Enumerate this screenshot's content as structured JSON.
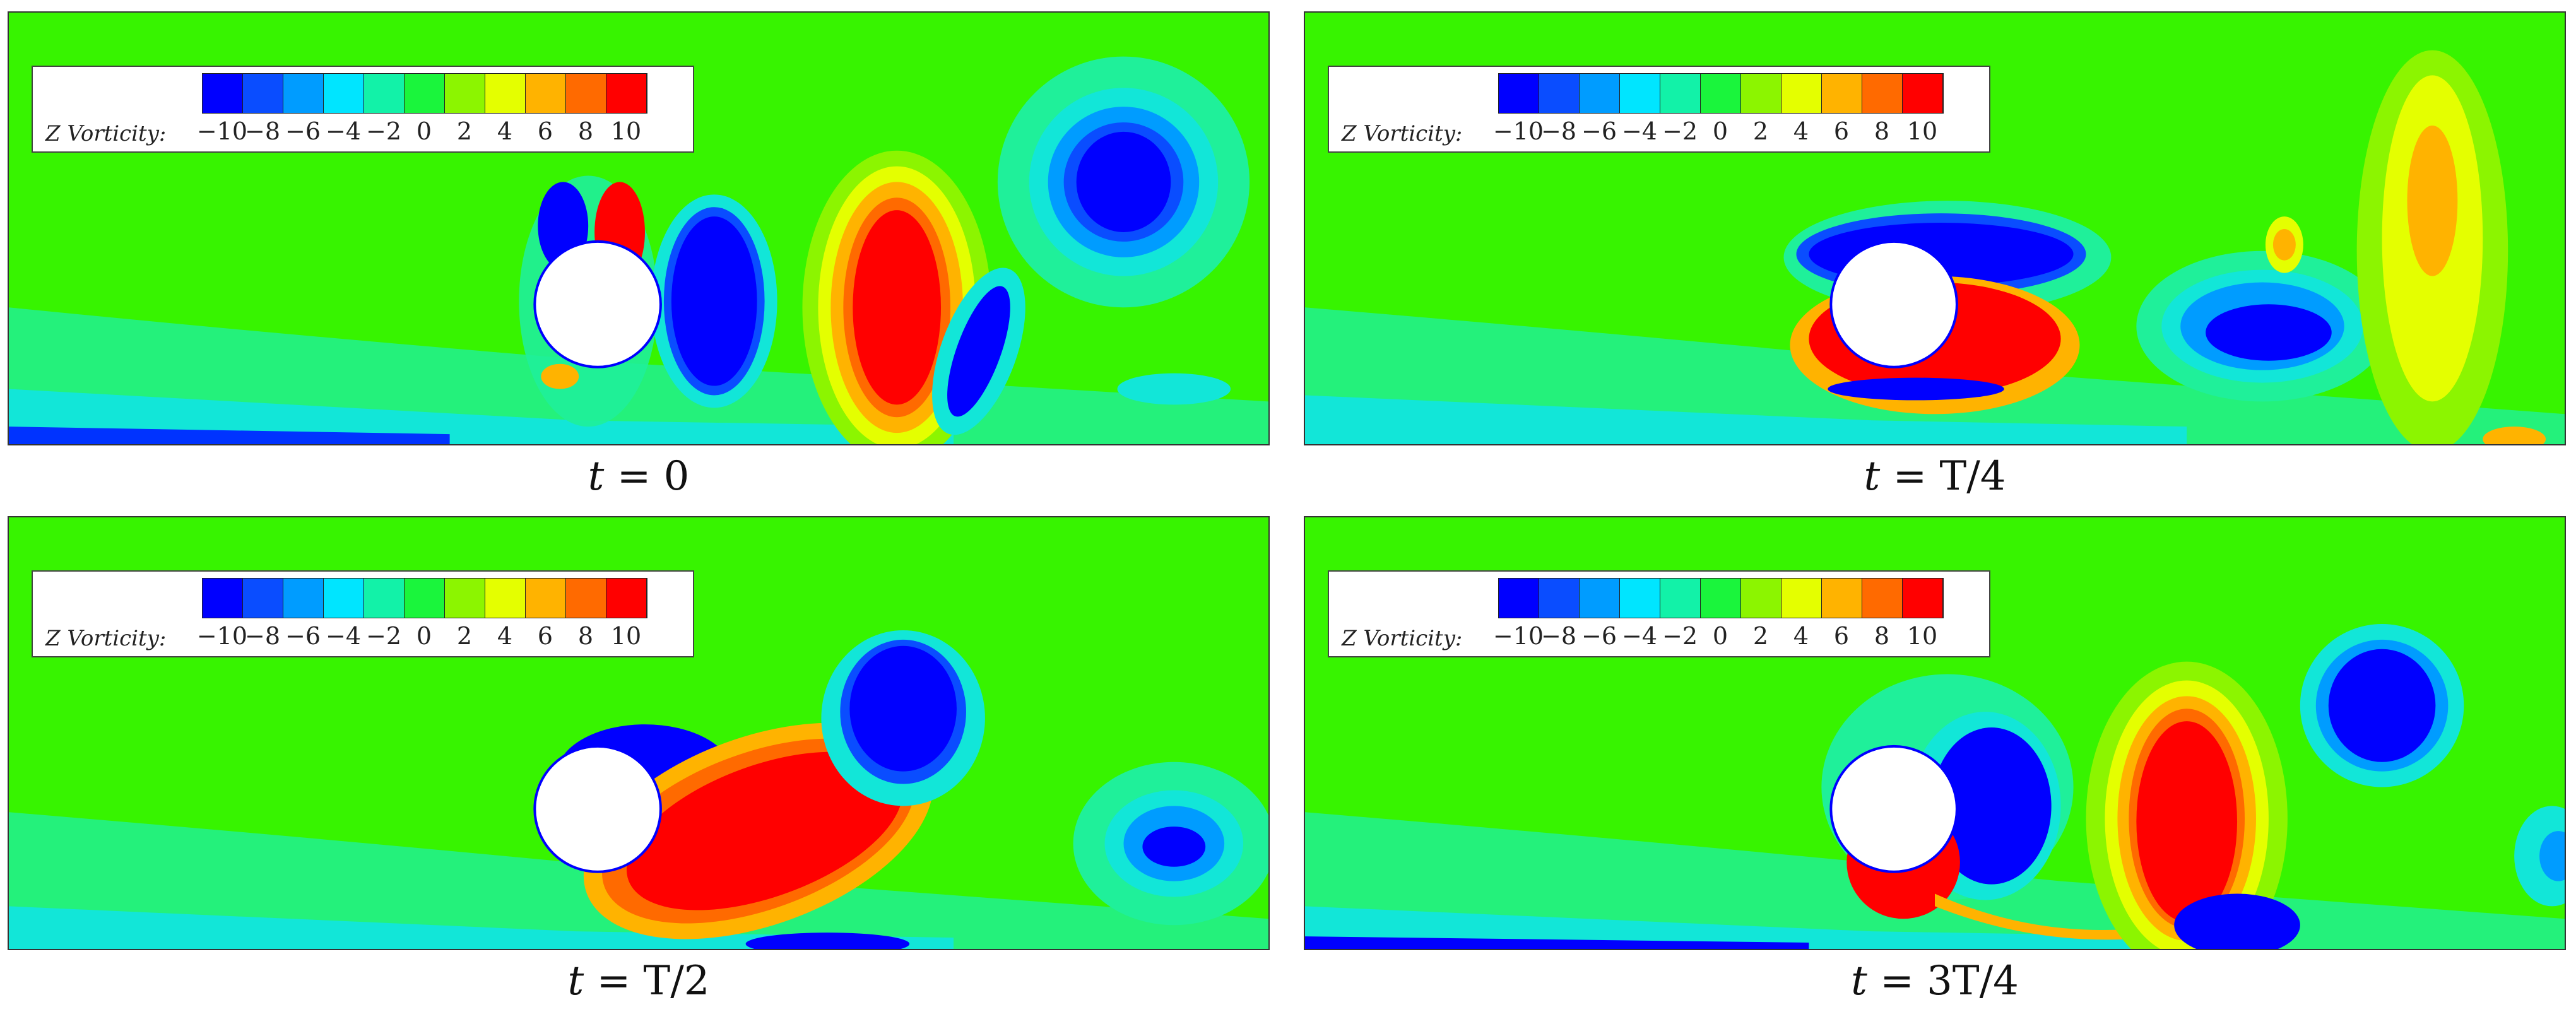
{
  "legend": {
    "title": "Z Vorticity:",
    "ticks": [
      "−10",
      "−8",
      "−6",
      "−4",
      "−2",
      "0",
      "2",
      "4",
      "6",
      "8",
      "10"
    ],
    "colors": [
      "#0000ff",
      "#0a4dff",
      "#009cff",
      "#00e5ff",
      "#12f2a8",
      "#1af53c",
      "#8cf500",
      "#e4ff00",
      "#ffb300",
      "#ff6a00",
      "#ff0000"
    ]
  },
  "panels": [
    {
      "caption_var": "t",
      "caption_eq": " = ",
      "caption_val": "0"
    },
    {
      "caption_var": "t",
      "caption_eq": " = ",
      "caption_val": "T/4"
    },
    {
      "caption_var": "t",
      "caption_eq": " = ",
      "caption_val": "T/2"
    },
    {
      "caption_var": "t",
      "caption_eq": " = ",
      "caption_val": "3T/4"
    }
  ]
}
